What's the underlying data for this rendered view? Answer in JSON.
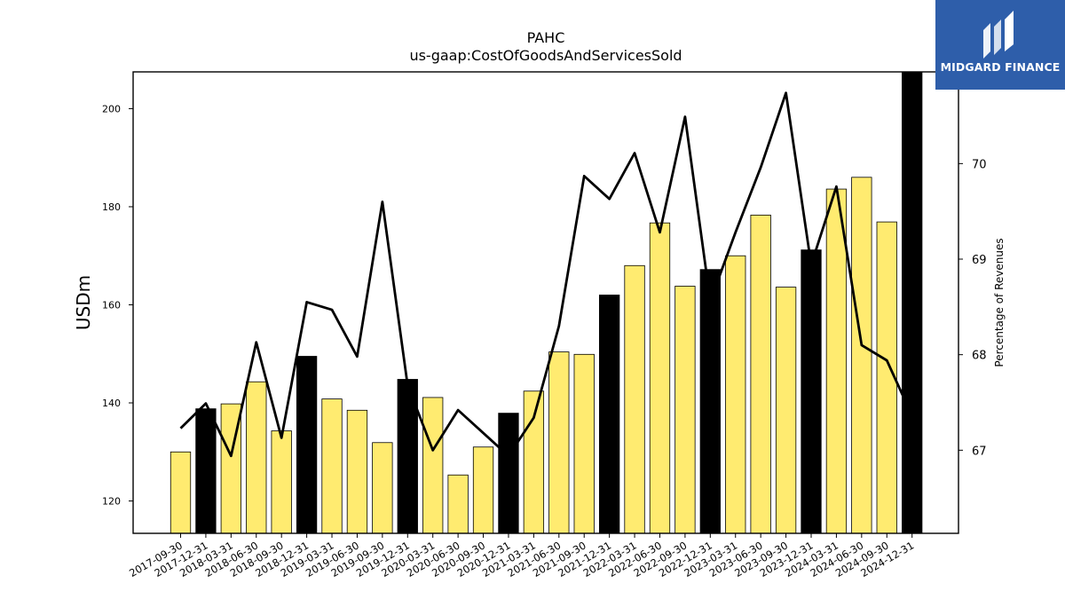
{
  "brand": {
    "name": "MIDGARD FINANCE",
    "logo_icon": "midgard-m-logo-icon",
    "background_color": "#2e5eaa"
  },
  "chart_data": {
    "type": "bar",
    "title": "PAHC",
    "subtitle": "us-gaap:CostOfGoodsAndServicesSold",
    "ylabel": "USDm",
    "y2label": "Percentage of Revenues",
    "ylim": [
      113.4,
      207.5
    ],
    "y2lim": [
      66.13,
      70.96
    ],
    "yticks": [
      120,
      140,
      160,
      180,
      200
    ],
    "y2ticks": [
      67,
      68,
      69,
      70
    ],
    "grid": false,
    "colors": {
      "quarter_bar": "#ffeb70",
      "fiscal_year_end_bar": "#000000",
      "line": "#000000"
    },
    "categories": [
      "2017-09-30",
      "2017-12-31",
      "2018-03-31",
      "2018-06-30",
      "2018-09-30",
      "2018-12-31",
      "2019-03-31",
      "2019-06-30",
      "2019-09-30",
      "2019-12-31",
      "2020-03-31",
      "2020-06-30",
      "2020-09-30",
      "2020-12-31",
      "2021-03-31",
      "2021-06-30",
      "2021-09-30",
      "2021-12-31",
      "2022-03-31",
      "2022-06-30",
      "2022-09-30",
      "2022-12-31",
      "2023-03-31",
      "2023-06-30",
      "2023-09-30",
      "2023-12-31",
      "2024-03-31",
      "2024-06-30",
      "2024-09-30",
      "2024-12-31"
    ],
    "series": [
      {
        "kind": "bar",
        "axis": "left",
        "values": [
          130.0,
          138.8,
          139.8,
          144.3,
          134.3,
          149.5,
          140.8,
          138.5,
          131.9,
          144.8,
          141.1,
          125.3,
          131.0,
          137.9,
          142.4,
          150.4,
          149.9,
          162.0,
          168.0,
          176.7,
          163.8,
          167.2,
          170.0,
          178.3,
          163.6,
          171.2,
          183.6,
          186.0,
          176.9,
          207.5
        ],
        "highlight": [
          false,
          true,
          false,
          false,
          false,
          true,
          false,
          false,
          false,
          true,
          false,
          false,
          false,
          true,
          false,
          false,
          false,
          true,
          false,
          false,
          false,
          true,
          false,
          false,
          false,
          true,
          false,
          false,
          false,
          true
        ]
      },
      {
        "kind": "line",
        "axis": "right",
        "values": [
          67.23,
          67.49,
          66.94,
          68.13,
          67.13,
          68.55,
          68.47,
          67.98,
          69.6,
          67.68,
          67.0,
          67.42,
          67.18,
          66.94,
          67.34,
          68.3,
          69.87,
          69.63,
          70.11,
          69.28,
          70.49,
          68.56,
          69.28,
          69.96,
          70.74,
          68.94,
          69.76,
          68.1,
          67.94,
          67.36
        ]
      }
    ]
  }
}
